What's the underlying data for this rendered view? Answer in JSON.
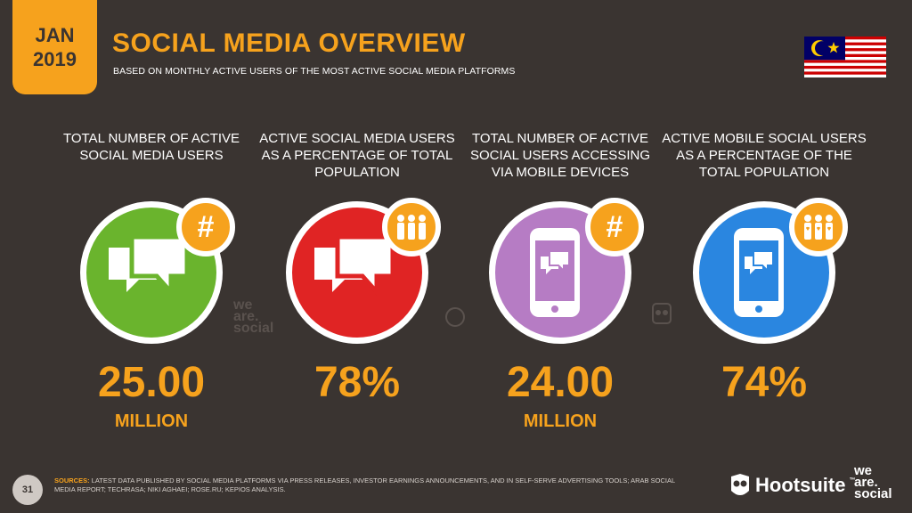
{
  "header": {
    "month": "JAN",
    "year": "2019",
    "title": "SOCIAL MEDIA OVERVIEW",
    "subtitle": "BASED ON MONTHLY ACTIVE USERS OF THE MOST ACTIVE SOCIAL MEDIA PLATFORMS"
  },
  "colors": {
    "background": "#3a3431",
    "accent": "#f6a21d",
    "green": "#6ab42d",
    "red": "#e02424",
    "purple": "#b67cc4",
    "blue": "#2a86e0"
  },
  "stats": [
    {
      "label": "TOTAL NUMBER OF ACTIVE SOCIAL MEDIA USERS",
      "value": "25.00",
      "unit": "MILLION",
      "badge": "#",
      "icon": "chat-bubbles-icon"
    },
    {
      "label": "ACTIVE SOCIAL MEDIA USERS AS A PERCENTAGE OF TOTAL POPULATION",
      "value": "78%",
      "unit": "",
      "badge_icon": "people-icon",
      "icon": "chat-bubbles-icon"
    },
    {
      "label": "TOTAL NUMBER OF ACTIVE SOCIAL USERS ACCESSING VIA MOBILE DEVICES",
      "value": "24.00",
      "unit": "MILLION",
      "badge": "#",
      "icon": "mobile-chat-icon"
    },
    {
      "label": "ACTIVE MOBILE SOCIAL USERS AS A PERCENTAGE OF THE TOTAL POPULATION",
      "value": "74%",
      "unit": "",
      "badge_icon": "people-heart-icon",
      "icon": "mobile-chat-icon"
    }
  ],
  "watermark": {
    "line1": "we",
    "line2": "are.",
    "line3": "social"
  },
  "footer": {
    "page": "31",
    "sources_lead": "SOURCES:",
    "sources_text": "LATEST DATA PUBLISHED BY SOCIAL MEDIA PLATFORMS VIA PRESS RELEASES, INVESTOR EARNINGS ANNOUNCEMENTS, AND IN SELF-SERVE ADVERTISING TOOLS; ARAB SOCIAL MEDIA REPORT; TECHRASA; NIKI AGHAEI; ROSE.RU; KEPIOS ANALYSIS.",
    "brand1": "Hootsuite",
    "brand1_tm": "™",
    "brand2_line1": "we",
    "brand2_line2": "are.",
    "brand2_line3": "social"
  }
}
